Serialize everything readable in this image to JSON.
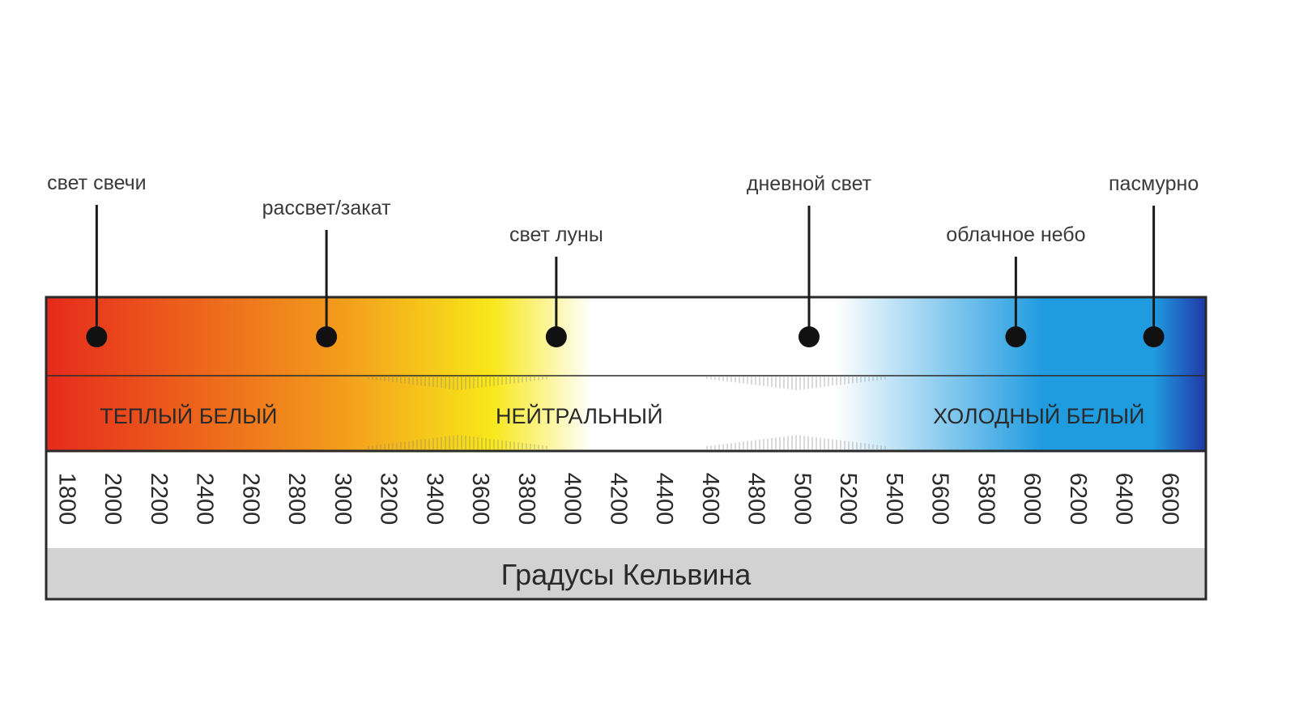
{
  "scale": {
    "min": 1800,
    "max": 6600,
    "step": 200,
    "axis_title": "Градусы Кельвина",
    "tick_labels": [
      "1800",
      "2000",
      "2200",
      "2400",
      "2600",
      "2800",
      "3000",
      "3200",
      "3400",
      "3600",
      "3800",
      "4000",
      "4200",
      "4400",
      "4600",
      "4800",
      "5000",
      "5200",
      "5400",
      "5600",
      "5800",
      "6000",
      "6200",
      "6400",
      "6600"
    ]
  },
  "markers": [
    {
      "label": "свет свечи",
      "kelvin": 1900
    },
    {
      "label": "рассвет/закат",
      "kelvin": 2900
    },
    {
      "label": "свет луны",
      "kelvin": 3900
    },
    {
      "label": "дневной свет",
      "kelvin": 5000
    },
    {
      "label": "облачное небо",
      "kelvin": 5900
    },
    {
      "label": "пасмурно",
      "kelvin": 6500
    }
  ],
  "zones": [
    {
      "label": "ТЕПЛЫЙ БЕЛЫЙ",
      "kelvin": 2300
    },
    {
      "label": "НЕЙТРАЛЬНЫЙ",
      "kelvin": 4000
    },
    {
      "label": "ХОЛОДНЫЙ БЕЛЫЙ",
      "kelvin": 6000
    }
  ],
  "colors": {
    "warm_red": "#e62a1c",
    "orange": "#f39a1c",
    "yellow": "#f8e81a",
    "neutral_white": "#ffffff",
    "sky_blue": "#1f9be0",
    "deep_blue": "#2038a8",
    "footer_gray": "#d2d2d2",
    "outline": "#2a2a2a"
  }
}
